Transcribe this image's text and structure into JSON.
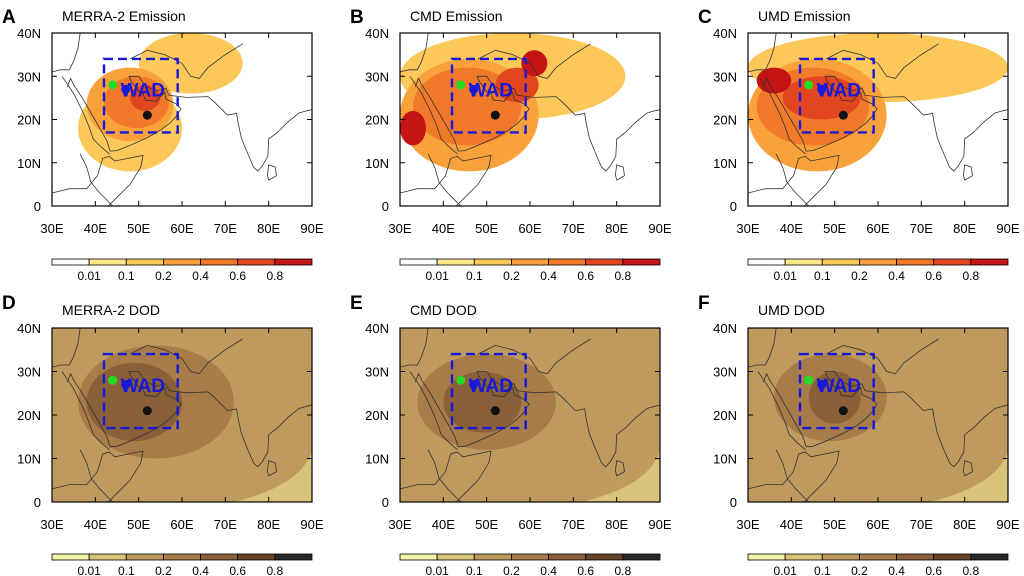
{
  "figure": {
    "colorbar_ticks": [
      "0.01",
      "0.1",
      "0.2",
      "0.4",
      "0.6",
      "0.8"
    ],
    "region_label": "WAD"
  },
  "chart_data": [
    {
      "type": "heatmap",
      "panel": "A",
      "title": "MERRA-2 Emission",
      "variable": "emission",
      "x_ticks": [
        "30E",
        "40E",
        "50E",
        "60E",
        "70E",
        "80E",
        "90E"
      ],
      "y_ticks": [
        "0",
        "10N",
        "20N",
        "30N",
        "40N"
      ],
      "xlim": [
        30,
        90
      ],
      "ylim": [
        0,
        40
      ],
      "levels": [
        0.01,
        0.1,
        0.2,
        0.4,
        0.6,
        0.8
      ],
      "colors": [
        "#ffffff",
        "#fde98c",
        "#fcc85a",
        "#f9a23c",
        "#f07a2a",
        "#e2461f",
        "#c41414"
      ],
      "box": {
        "lon": [
          42,
          59
        ],
        "lat": [
          17,
          34
        ]
      },
      "markers": [
        {
          "lon": 44,
          "lat": 28,
          "color": "#22dd22"
        },
        {
          "lon": 47,
          "lat": 27,
          "color": "#1818d8"
        },
        {
          "lon": 52,
          "lat": 21,
          "color": "#111111"
        }
      ],
      "regions": [
        {
          "lat": [
            26,
            40
          ],
          "lon": [
            50,
            74
          ],
          "val": 0.1
        },
        {
          "lat": [
            8,
            28
          ],
          "lon": [
            36,
            60
          ],
          "val": 0.1
        },
        {
          "lat": [
            15,
            32
          ],
          "lon": [
            38,
            58
          ],
          "val": 0.2
        },
        {
          "lat": [
            18,
            30
          ],
          "lon": [
            42,
            57
          ],
          "val": 0.4
        },
        {
          "lat": [
            22,
            28
          ],
          "lon": [
            48,
            55
          ],
          "val": 0.6
        }
      ]
    },
    {
      "type": "heatmap",
      "panel": "B",
      "title": "CMD Emission",
      "variable": "emission",
      "x_ticks": [
        "30E",
        "40E",
        "50E",
        "60E",
        "70E",
        "80E",
        "90E"
      ],
      "y_ticks": [
        "0",
        "10N",
        "20N",
        "30N",
        "40N"
      ],
      "xlim": [
        30,
        90
      ],
      "ylim": [
        0,
        40
      ],
      "levels": [
        0.01,
        0.1,
        0.2,
        0.4,
        0.6,
        0.8
      ],
      "colors": [
        "#ffffff",
        "#fde98c",
        "#fcc85a",
        "#f9a23c",
        "#f07a2a",
        "#e2461f",
        "#c41414"
      ],
      "box": {
        "lon": [
          42,
          59
        ],
        "lat": [
          17,
          34
        ]
      },
      "markers": [
        {
          "lon": 44,
          "lat": 28,
          "color": "#22dd22"
        },
        {
          "lon": 47,
          "lat": 27,
          "color": "#1818d8"
        },
        {
          "lon": 52,
          "lat": 21,
          "color": "#111111"
        }
      ],
      "regions": [
        {
          "lat": [
            20,
            40
          ],
          "lon": [
            30,
            82
          ],
          "val": 0.1
        },
        {
          "lat": [
            8,
            34
          ],
          "lon": [
            30,
            62
          ],
          "val": 0.2
        },
        {
          "lat": [
            14,
            32
          ],
          "lon": [
            33,
            58
          ],
          "val": 0.4
        },
        {
          "lat": [
            24,
            32
          ],
          "lon": [
            52,
            62
          ],
          "val": 0.6
        },
        {
          "lat": [
            14,
            22
          ],
          "lon": [
            30,
            36
          ],
          "val": 0.8
        },
        {
          "lat": [
            30,
            36
          ],
          "lon": [
            58,
            64
          ],
          "val": 0.8
        }
      ]
    },
    {
      "type": "heatmap",
      "panel": "C",
      "title": "UMD Emission",
      "variable": "emission",
      "x_ticks": [
        "30E",
        "40E",
        "50E",
        "60E",
        "70E",
        "80E",
        "90E"
      ],
      "y_ticks": [
        "0",
        "10N",
        "20N",
        "30N",
        "40N"
      ],
      "xlim": [
        30,
        90
      ],
      "ylim": [
        0,
        40
      ],
      "levels": [
        0.01,
        0.1,
        0.2,
        0.4,
        0.6,
        0.8
      ],
      "colors": [
        "#ffffff",
        "#fde98c",
        "#fcc85a",
        "#f9a23c",
        "#f07a2a",
        "#e2461f",
        "#c41414"
      ],
      "box": {
        "lon": [
          42,
          59
        ],
        "lat": [
          17,
          34
        ]
      },
      "markers": [
        {
          "lon": 44,
          "lat": 28,
          "color": "#22dd22"
        },
        {
          "lon": 47,
          "lat": 27,
          "color": "#1818d8"
        },
        {
          "lon": 52,
          "lat": 21,
          "color": "#111111"
        }
      ],
      "regions": [
        {
          "lat": [
            24,
            40
          ],
          "lon": [
            30,
            90
          ],
          "val": 0.1
        },
        {
          "lat": [
            8,
            34
          ],
          "lon": [
            30,
            62
          ],
          "val": 0.2
        },
        {
          "lat": [
            14,
            32
          ],
          "lon": [
            32,
            58
          ],
          "val": 0.4
        },
        {
          "lat": [
            20,
            30
          ],
          "lon": [
            38,
            56
          ],
          "val": 0.6
        },
        {
          "lat": [
            26,
            32
          ],
          "lon": [
            32,
            40
          ],
          "val": 0.8
        }
      ]
    },
    {
      "type": "heatmap",
      "panel": "D",
      "title": "MERRA-2 DOD",
      "variable": "dust optical depth",
      "x_ticks": [
        "30E",
        "40E",
        "50E",
        "60E",
        "70E",
        "80E",
        "90E"
      ],
      "y_ticks": [
        "0",
        "10N",
        "20N",
        "30N",
        "40N"
      ],
      "xlim": [
        30,
        90
      ],
      "ylim": [
        0,
        40
      ],
      "levels": [
        0.01,
        0.1,
        0.2,
        0.4,
        0.6,
        0.8
      ],
      "colors": [
        "#f1f3a8",
        "#d8c37a",
        "#bf9a5e",
        "#a77c49",
        "#8a6038",
        "#664427",
        "#2a2a2a"
      ],
      "box": {
        "lon": [
          42,
          59
        ],
        "lat": [
          17,
          34
        ]
      },
      "markers": [
        {
          "lon": 44,
          "lat": 28,
          "color": "#22dd22"
        },
        {
          "lon": 47,
          "lat": 27,
          "color": "#1818d8"
        },
        {
          "lon": 52,
          "lat": 21,
          "color": "#111111"
        }
      ],
      "base": 0.1,
      "regions": [
        {
          "lat": [
            10,
            36
          ],
          "lon": [
            36,
            72
          ],
          "val": 0.2
        },
        {
          "lat": [
            14,
            32
          ],
          "lon": [
            38,
            60
          ],
          "val": 0.4
        }
      ]
    },
    {
      "type": "heatmap",
      "panel": "E",
      "title": "CMD DOD",
      "variable": "dust optical depth",
      "x_ticks": [
        "30E",
        "40E",
        "50E",
        "60E",
        "70E",
        "80E",
        "90E"
      ],
      "y_ticks": [
        "0",
        "10N",
        "20N",
        "30N",
        "40N"
      ],
      "xlim": [
        30,
        90
      ],
      "ylim": [
        0,
        40
      ],
      "levels": [
        0.01,
        0.1,
        0.2,
        0.4,
        0.6,
        0.8
      ],
      "colors": [
        "#f1f3a8",
        "#d8c37a",
        "#bf9a5e",
        "#a77c49",
        "#8a6038",
        "#664427",
        "#2a2a2a"
      ],
      "box": {
        "lon": [
          42,
          59
        ],
        "lat": [
          17,
          34
        ]
      },
      "markers": [
        {
          "lon": 44,
          "lat": 28,
          "color": "#22dd22"
        },
        {
          "lon": 47,
          "lat": 27,
          "color": "#1818d8"
        },
        {
          "lon": 52,
          "lat": 21,
          "color": "#111111"
        }
      ],
      "base": 0.1,
      "regions": [
        {
          "lat": [
            12,
            34
          ],
          "lon": [
            34,
            66
          ],
          "val": 0.2
        },
        {
          "lat": [
            16,
            30
          ],
          "lon": [
            40,
            58
          ],
          "val": 0.4
        }
      ]
    },
    {
      "type": "heatmap",
      "panel": "F",
      "title": "UMD DOD",
      "variable": "dust optical depth",
      "x_ticks": [
        "30E",
        "40E",
        "50E",
        "60E",
        "70E",
        "80E",
        "90E"
      ],
      "y_ticks": [
        "0",
        "10N",
        "20N",
        "30N",
        "40N"
      ],
      "xlim": [
        30,
        90
      ],
      "ylim": [
        0,
        40
      ],
      "levels": [
        0.01,
        0.1,
        0.2,
        0.4,
        0.6,
        0.8
      ],
      "colors": [
        "#f1f3a8",
        "#d8c37a",
        "#bf9a5e",
        "#a77c49",
        "#8a6038",
        "#664427",
        "#2a2a2a"
      ],
      "box": {
        "lon": [
          42,
          59
        ],
        "lat": [
          17,
          34
        ]
      },
      "markers": [
        {
          "lon": 44,
          "lat": 28,
          "color": "#22dd22"
        },
        {
          "lon": 47,
          "lat": 27,
          "color": "#1818d8"
        },
        {
          "lon": 52,
          "lat": 21,
          "color": "#111111"
        }
      ],
      "base": 0.1,
      "regions": [
        {
          "lat": [
            14,
            34
          ],
          "lon": [
            36,
            62
          ],
          "val": 0.2
        },
        {
          "lat": [
            18,
            30
          ],
          "lon": [
            44,
            56
          ],
          "val": 0.4
        }
      ]
    }
  ]
}
